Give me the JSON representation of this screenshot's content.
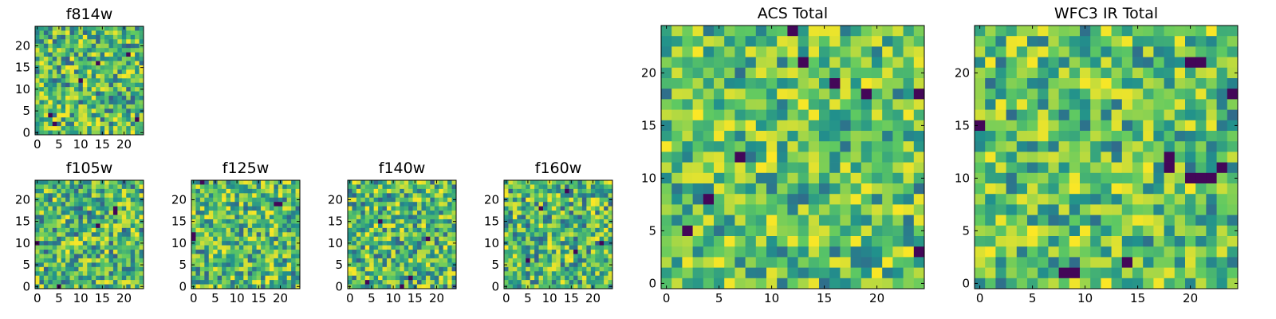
{
  "chart_data": [
    {
      "type": "heatmap",
      "title": "f814w",
      "grid_size": 25,
      "xlim": [
        -0.5,
        24.5
      ],
      "ylim": [
        -0.5,
        24.5
      ],
      "xticks": [
        0,
        5,
        10,
        15,
        20
      ],
      "yticks": [
        0,
        5,
        10,
        15,
        20
      ],
      "colormap": "viridis",
      "seed": 11,
      "min_level": 0.28,
      "dark_cells": [
        [
          3,
          4
        ],
        [
          21,
          18
        ],
        [
          10,
          12
        ],
        [
          4,
          2
        ],
        [
          23,
          3
        ],
        [
          14,
          16
        ]
      ]
    },
    {
      "type": "heatmap",
      "title": "f105w",
      "grid_size": 25,
      "xlim": [
        -0.5,
        24.5
      ],
      "ylim": [
        -0.5,
        24.5
      ],
      "xticks": [
        0,
        5,
        10,
        15,
        20
      ],
      "yticks": [
        0,
        5,
        10,
        15,
        20
      ],
      "colormap": "viridis",
      "seed": 21,
      "min_level": 0.28,
      "dark_cells": [
        [
          5,
          0
        ],
        [
          18,
          18
        ],
        [
          18,
          17
        ],
        [
          0,
          10
        ],
        [
          14,
          14
        ]
      ]
    },
    {
      "type": "heatmap",
      "title": "f125w",
      "grid_size": 25,
      "xlim": [
        -0.5,
        24.5
      ],
      "ylim": [
        -0.5,
        24.5
      ],
      "xticks": [
        0,
        5,
        10,
        15,
        20
      ],
      "yticks": [
        0,
        5,
        10,
        15,
        20
      ],
      "colormap": "viridis",
      "seed": 31,
      "min_level": 0.3,
      "dark_cells": [
        [
          20,
          19
        ],
        [
          19,
          19
        ],
        [
          0,
          11
        ],
        [
          0,
          12
        ],
        [
          2,
          24
        ]
      ]
    },
    {
      "type": "heatmap",
      "title": "f140w",
      "grid_size": 25,
      "xlim": [
        -0.5,
        24.5
      ],
      "ylim": [
        -0.5,
        24.5
      ],
      "xticks": [
        0,
        5,
        10,
        15,
        20
      ],
      "yticks": [
        0,
        5,
        10,
        15,
        20
      ],
      "colormap": "viridis",
      "seed": 41,
      "min_level": 0.28,
      "dark_cells": [
        [
          7,
          15
        ],
        [
          14,
          2
        ],
        [
          18,
          11
        ],
        [
          4,
          1
        ],
        [
          12,
          0
        ]
      ]
    },
    {
      "type": "heatmap",
      "title": "f160w",
      "grid_size": 25,
      "xlim": [
        -0.5,
        24.5
      ],
      "ylim": [
        -0.5,
        24.5
      ],
      "xticks": [
        0,
        5,
        10,
        15,
        20
      ],
      "yticks": [
        0,
        5,
        10,
        15,
        20
      ],
      "colormap": "viridis",
      "seed": 51,
      "min_level": 0.28,
      "dark_cells": [
        [
          5,
          6
        ],
        [
          14,
          22
        ],
        [
          8,
          18
        ],
        [
          22,
          10
        ],
        [
          16,
          8
        ]
      ]
    },
    {
      "type": "heatmap",
      "title": "ACS Total",
      "grid_size": 25,
      "xlim": [
        -0.5,
        24.5
      ],
      "ylim": [
        -0.5,
        24.5
      ],
      "xticks": [
        0,
        5,
        10,
        15,
        20
      ],
      "yticks": [
        0,
        5,
        10,
        15,
        20
      ],
      "colormap": "viridis",
      "seed": 61,
      "min_level": 0.35,
      "dark_cells": [
        [
          13,
          21
        ],
        [
          16,
          19
        ],
        [
          24,
          18
        ],
        [
          19,
          18
        ],
        [
          7,
          12
        ],
        [
          4,
          8
        ],
        [
          2,
          5
        ],
        [
          24,
          3
        ],
        [
          12,
          24
        ]
      ]
    },
    {
      "type": "heatmap",
      "title": "WFC3 IR Total",
      "grid_size": 25,
      "xlim": [
        -0.5,
        24.5
      ],
      "ylim": [
        -0.5,
        24.5
      ],
      "xticks": [
        0,
        5,
        10,
        15,
        20
      ],
      "yticks": [
        0,
        5,
        10,
        15,
        20
      ],
      "colormap": "viridis",
      "seed": 71,
      "min_level": 0.35,
      "dark_cells": [
        [
          20,
          21
        ],
        [
          21,
          21
        ],
        [
          24,
          18
        ],
        [
          0,
          15
        ],
        [
          18,
          11
        ],
        [
          20,
          10
        ],
        [
          21,
          10
        ],
        [
          22,
          10
        ],
        [
          8,
          1
        ],
        [
          9,
          1
        ],
        [
          14,
          2
        ],
        [
          23,
          11
        ],
        [
          18,
          12
        ]
      ]
    }
  ]
}
